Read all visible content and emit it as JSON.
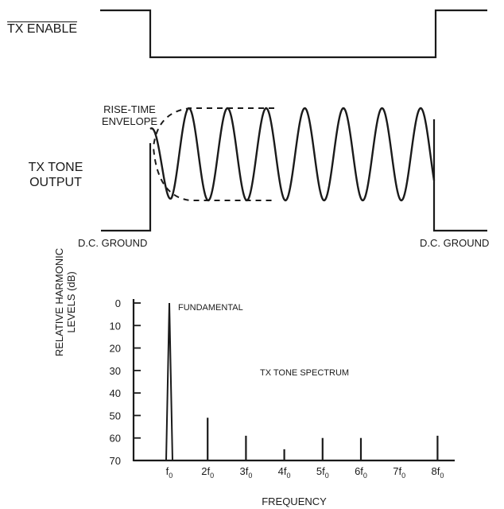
{
  "tx_enable": {
    "label": "TX ENABLE"
  },
  "tone": {
    "envelope_label_line1": "RISE-TIME",
    "envelope_label_line2": "ENVELOPE",
    "output_label_line1": "TX TONE",
    "output_label_line2": "OUTPUT",
    "ground_left": "D.C. GROUND",
    "ground_right": "D.C. GROUND"
  },
  "spectrum": {
    "y_title_line1": "RELATIVE HARMONIC",
    "y_title_line2": "LEVELS (dB)",
    "x_title": "FREQUENCY",
    "plot_label": "TX TONE SPECTRUM",
    "fundamental_label": "FUNDAMENTAL",
    "y_ticks": [
      "0",
      "10",
      "20",
      "30",
      "40",
      "50",
      "60",
      "70"
    ],
    "harmonics": [
      {
        "base": "f",
        "prefix": "",
        "level_db": 0
      },
      {
        "base": "f",
        "prefix": "2",
        "level_db": 51
      },
      {
        "base": "f",
        "prefix": "3",
        "level_db": 59
      },
      {
        "base": "f",
        "prefix": "4",
        "level_db": 65
      },
      {
        "base": "f",
        "prefix": "5",
        "level_db": 60
      },
      {
        "base": "f",
        "prefix": "6",
        "level_db": 60
      },
      {
        "base": "f",
        "prefix": "7",
        "level_db": null
      },
      {
        "base": "f",
        "prefix": "8",
        "level_db": 59
      }
    ],
    "subscript": "0",
    "ylim": [
      0,
      70
    ]
  }
}
